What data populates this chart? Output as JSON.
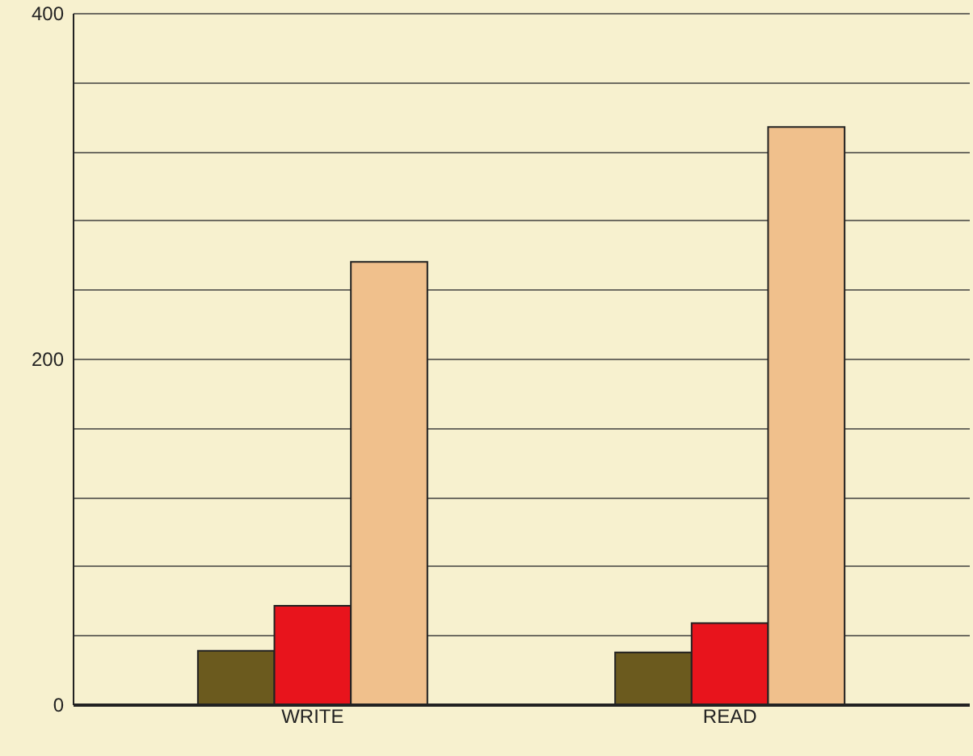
{
  "chart_data": {
    "type": "bar",
    "categories": [
      "WRITE",
      "READ"
    ],
    "series": [
      {
        "color": "#6b5a1e",
        "values": [
          31,
          30
        ]
      },
      {
        "color": "#e8141c",
        "values": [
          57,
          47
        ]
      },
      {
        "color": "#f0c08c",
        "values": [
          256,
          334
        ]
      }
    ],
    "ylim": [
      0,
      400
    ],
    "yticks": [
      0,
      {
        "value": 40,
        "label": null
      },
      {
        "value": 80,
        "label": null
      },
      {
        "value": 120,
        "label": null
      },
      {
        "value": 160,
        "label": null
      },
      200,
      {
        "value": 240,
        "label": null
      },
      {
        "value": 280,
        "label": null
      },
      {
        "value": 320,
        "label": null
      },
      {
        "value": 360,
        "label": null
      },
      400
    ],
    "grid": "y"
  }
}
